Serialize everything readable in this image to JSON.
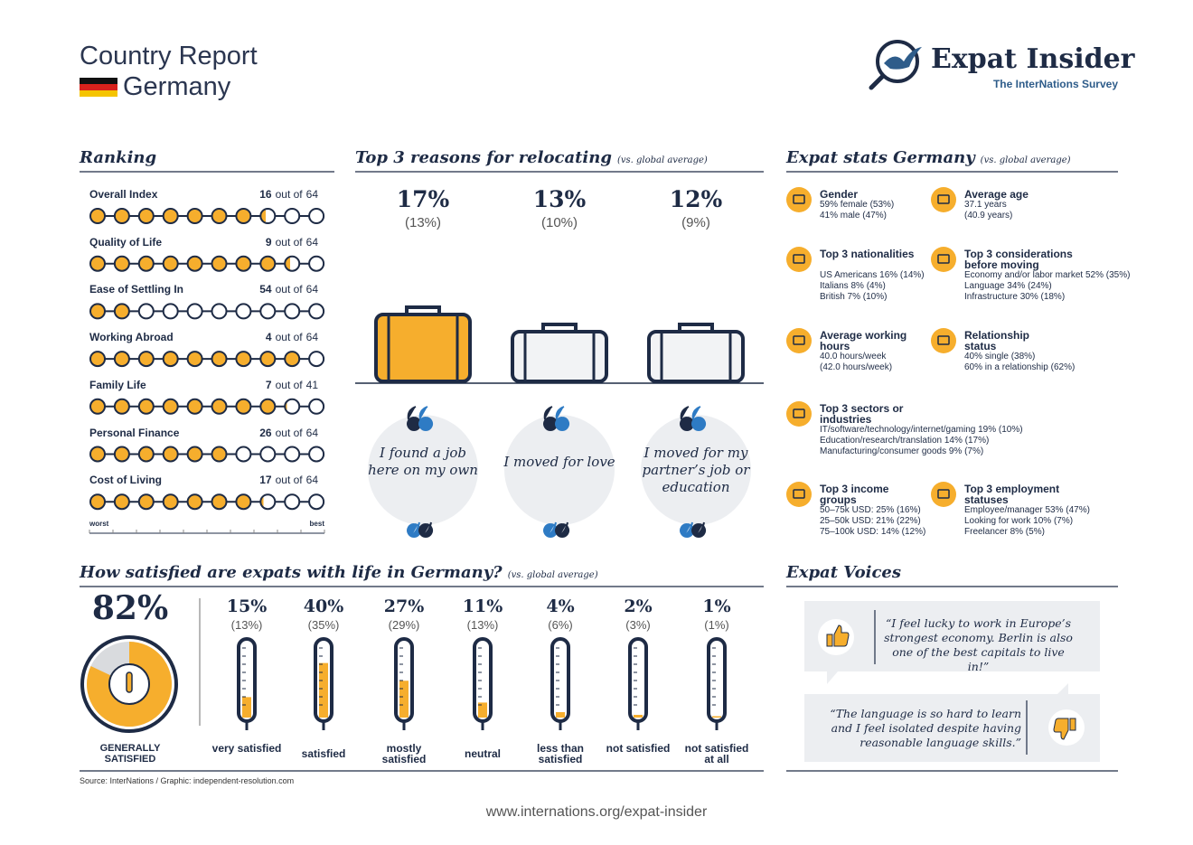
{
  "header": {
    "title": "Country Report",
    "country": "Germany",
    "brand": "Expat Insider",
    "brand_subtitle": "The InterNations Survey"
  },
  "ranking": {
    "heading": "Ranking",
    "out_of_text": "out of",
    "scale_worst": "worst",
    "scale_best": "best",
    "items": [
      {
        "label": "Overall Index",
        "rank": 16,
        "total": 64
      },
      {
        "label": "Quality of Life",
        "rank": 9,
        "total": 64
      },
      {
        "label": "Ease of Settling In",
        "rank": 54,
        "total": 64
      },
      {
        "label": "Working Abroad",
        "rank": 4,
        "total": 64
      },
      {
        "label": "Family Life",
        "rank": 7,
        "total": 41
      },
      {
        "label": "Personal Finance",
        "rank": 26,
        "total": 64
      },
      {
        "label": "Cost of Living",
        "rank": 17,
        "total": 64
      }
    ]
  },
  "reasons": {
    "heading": "Top 3 reasons for relocating",
    "note": "(vs. global average)",
    "items": [
      {
        "share": "17%",
        "global": "(13%)",
        "quote": "I found a job here on my own"
      },
      {
        "share": "13%",
        "global": "(10%)",
        "quote": "I moved for love"
      },
      {
        "share": "12%",
        "global": "(9%)",
        "quote": "I moved for my partner’s job or education"
      }
    ]
  },
  "stats": {
    "heading": "Expat stats Germany",
    "note": "(vs. global average)",
    "blocks": [
      {
        "title": "Gender",
        "lines": [
          "59% female (53%)",
          "41% male (47%)"
        ]
      },
      {
        "title": "Average age",
        "lines": [
          "37.1 years",
          "(40.9 years)"
        ]
      },
      {
        "title": "Top 3 nationalities",
        "lines": [
          "US Americans 16% (14%)",
          "Italians 8% (4%)",
          "British 7% (10%)"
        ]
      },
      {
        "title": "Top 3 considerations before moving",
        "lines": [
          "Economy and/or labor market 52% (35%)",
          "Language 34% (24%)",
          "Infrastructure 30% (18%)"
        ]
      },
      {
        "title": "Average working hours",
        "lines": [
          "40.0 hours/week",
          "(42.0 hours/week)"
        ]
      },
      {
        "title": "Relationship status",
        "lines": [
          "40% single (38%)",
          "60% in a relationship (62%)"
        ]
      },
      {
        "title": "Top 3 sectors or industries",
        "lines": [
          "IT/software/technology/internet/gaming 19% (10%)",
          "Education/research/translation 14% (17%)",
          "Manufacturing/consumer goods 9% (7%)"
        ]
      },
      {
        "title": "Top 3 income groups",
        "lines": [
          "50–75k USD: 25% (16%)",
          "25–50k USD: 21% (22%)",
          "75–100k USD: 14% (12%)"
        ]
      },
      {
        "title": "Top 3 employment statuses",
        "lines": [
          "Employee/manager 53% (47%)",
          "Looking for work 10% (7%)",
          "Freelancer 8% (5%)"
        ]
      }
    ]
  },
  "satisfaction": {
    "heading": "How satisfied are expats with life in Germany?",
    "note": "(vs. global average)",
    "overall": {
      "value": 82,
      "value_label": "82%",
      "label": "GENERALLY SATISFIED"
    },
    "items": [
      {
        "name": "very satisfied",
        "value": 15,
        "value_label": "15%",
        "global": "(13%)"
      },
      {
        "name": "satisfied",
        "value": 40,
        "value_label": "40%",
        "global": "(35%)"
      },
      {
        "name": "mostly satisfied",
        "value": 27,
        "value_label": "27%",
        "global": "(29%)"
      },
      {
        "name": "neutral",
        "value": 11,
        "value_label": "11%",
        "global": "(13%)"
      },
      {
        "name": "less than satisfied",
        "value": 4,
        "value_label": "4%",
        "global": "(6%)"
      },
      {
        "name": "not satisfied",
        "value": 2,
        "value_label": "2%",
        "global": "(3%)"
      },
      {
        "name": "not satisfied at all",
        "value": 1,
        "value_label": "1%",
        "global": "(1%)"
      }
    ]
  },
  "voices": {
    "heading": "Expat Voices",
    "quotes": [
      "“I feel lucky to work in Europe’s strongest economy. Berlin is also one of the best capitals to live in!”",
      "“The language is so hard to learn and I feel isolated despite having reasonable language skills.”"
    ]
  },
  "footer": {
    "source": "Source: InterNations / Graphic: independent-resolution.com",
    "url": "www.internations.org/expat-insider"
  }
}
